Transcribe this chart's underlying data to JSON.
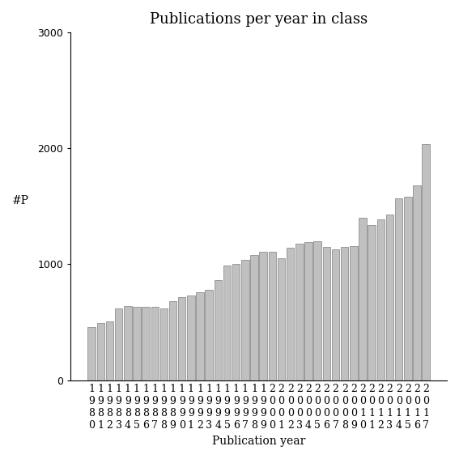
{
  "title": "Publications per year in class",
  "xlabel": "Publication year",
  "ylabel": "#P",
  "years": [
    1980,
    1981,
    1982,
    1983,
    1984,
    1985,
    1986,
    1987,
    1988,
    1989,
    1990,
    1991,
    1992,
    1993,
    1994,
    1995,
    1996,
    1997,
    1998,
    1999,
    2000,
    2001,
    2002,
    2003,
    2004,
    2005,
    2006,
    2007,
    2008,
    2009,
    2010,
    2011,
    2012,
    2013,
    2014,
    2015,
    2016,
    2017
  ],
  "values": [
    460,
    490,
    510,
    620,
    640,
    630,
    630,
    630,
    620,
    680,
    720,
    730,
    760,
    780,
    860,
    990,
    1000,
    1040,
    1080,
    1110,
    1110,
    1050,
    1140,
    1180,
    1190,
    1200,
    1150,
    1130,
    1150,
    1160,
    1400,
    1340,
    1390,
    1430,
    1570,
    1580,
    1680,
    2040
  ],
  "bar_color": "#c0c0c0",
  "bar_edge_color": "#808080",
  "ylim": [
    0,
    3000
  ],
  "yticks": [
    0,
    1000,
    2000,
    3000
  ],
  "background_color": "#ffffff",
  "title_fontsize": 13,
  "axis_fontsize": 10,
  "tick_fontsize": 9
}
